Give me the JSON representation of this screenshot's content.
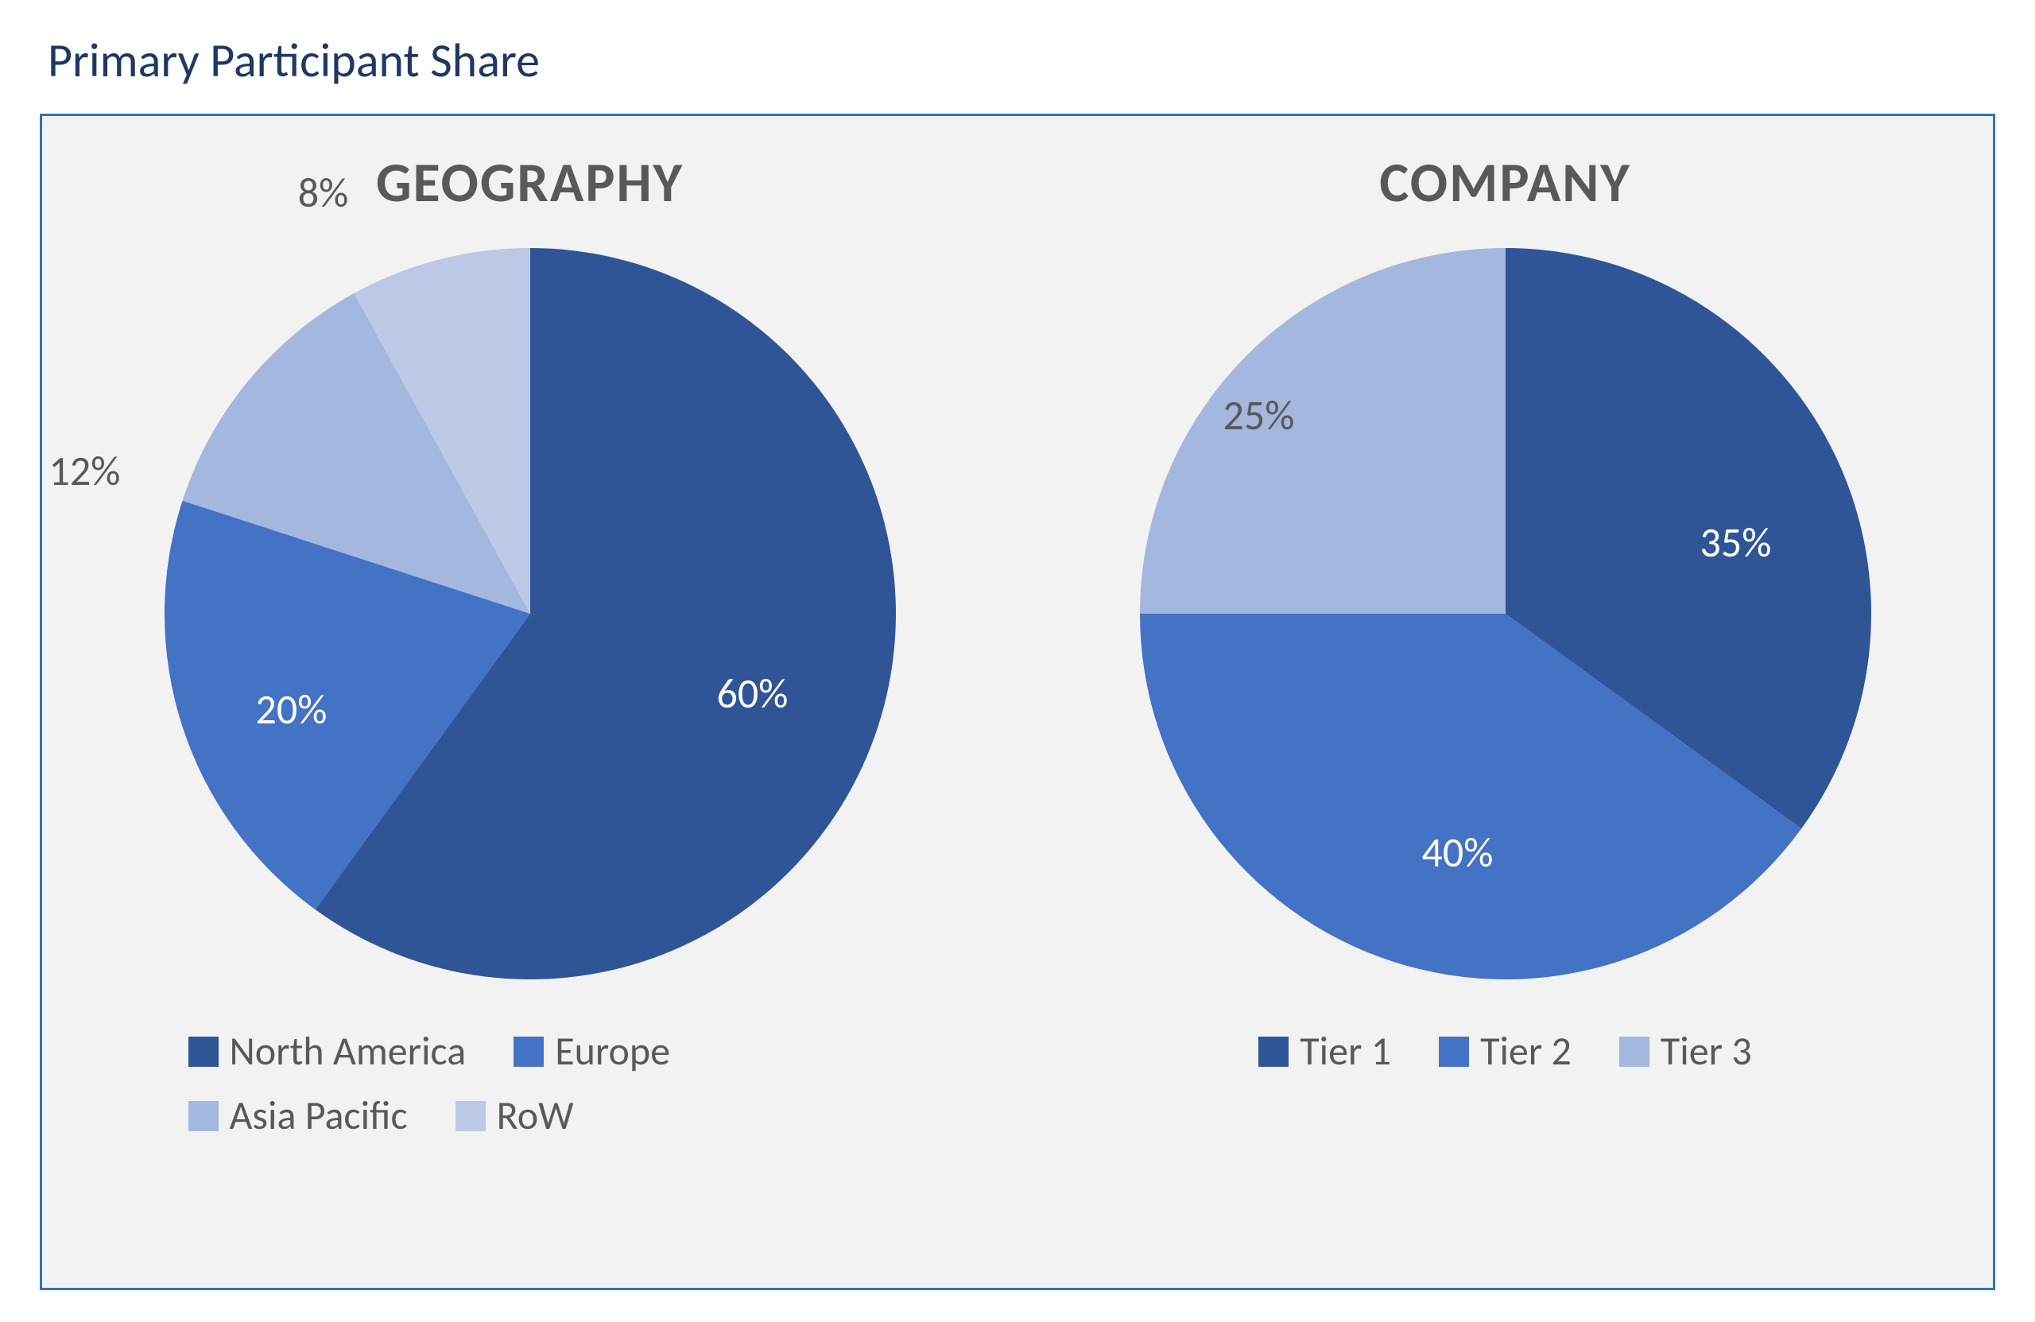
{
  "title": "Primary Participant Share",
  "panel": {
    "border_color": "#2e75b6",
    "background_color": "#f2f2f2"
  },
  "charts": {
    "geography": {
      "type": "pie",
      "title": "GEOGRAPHY",
      "title_color": "#595959",
      "title_fontsize": 70,
      "radius": 460,
      "slices": [
        {
          "label": "North America",
          "value": 60,
          "color": "#2f5597",
          "pct_text": "60%",
          "pct_color": "#ffffff",
          "pct_dx": 280,
          "pct_dy": 100,
          "label_inside": true
        },
        {
          "label": "Europe",
          "value": 20,
          "color": "#4472c4",
          "pct_text": "20%",
          "pct_color": "#ffffff",
          "pct_dx": -300,
          "pct_dy": 120,
          "label_inside": true
        },
        {
          "label": "Asia Pacific",
          "value": 12,
          "color": "#a4b7de",
          "pct_text": "12%",
          "pct_color": "#595959",
          "pct_dx": -560,
          "pct_dy": -180,
          "label_inside": false
        },
        {
          "label": "RoW",
          "value": 8,
          "color": "#bcc9e6",
          "pct_text": "8%",
          "pct_color": "#595959",
          "pct_dx": -260,
          "pct_dy": -530,
          "label_inside": false
        }
      ],
      "label_fontsize": 52,
      "legend_fontsize": 50,
      "legend_color": "#595959"
    },
    "company": {
      "type": "pie",
      "title": "COMPANY",
      "title_color": "#595959",
      "title_fontsize": 70,
      "radius": 460,
      "slices": [
        {
          "label": "Tier 1",
          "value": 35,
          "color": "#2f5597",
          "pct_text": "35%",
          "pct_color": "#ffffff",
          "pct_dx": 290,
          "pct_dy": -90,
          "label_inside": true
        },
        {
          "label": "Tier 2",
          "value": 40,
          "color": "#4472c4",
          "pct_text": "40%",
          "pct_color": "#ffffff",
          "pct_dx": -60,
          "pct_dy": 300,
          "label_inside": true
        },
        {
          "label": "Tier 3",
          "value": 25,
          "color": "#a4b7de",
          "pct_text": "25%",
          "pct_color": "#595959",
          "pct_dx": -310,
          "pct_dy": -250,
          "label_inside": true
        }
      ],
      "label_fontsize": 52,
      "legend_fontsize": 50,
      "legend_color": "#595959"
    }
  }
}
